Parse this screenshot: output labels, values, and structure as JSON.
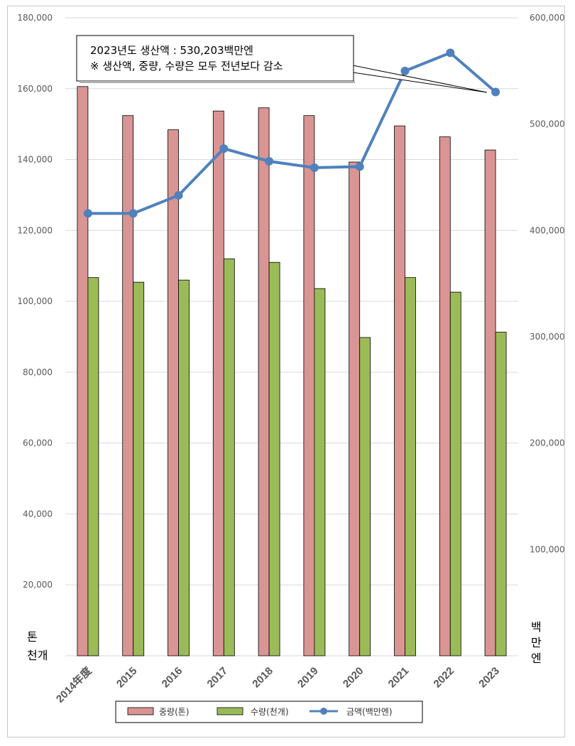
{
  "chart_data": {
    "type": "bar",
    "categories": [
      "2014年度",
      "2015",
      "2016",
      "2017",
      "2018",
      "2019",
      "2020",
      "2021",
      "2022",
      "2023"
    ],
    "series": [
      {
        "name": "중량(톤)",
        "type": "bar",
        "axis": "left",
        "color": "#d99594",
        "values": [
          160600,
          152400,
          148400,
          153700,
          154600,
          152400,
          139300,
          149500,
          146400,
          142700
        ]
      },
      {
        "name": "수량(천개)",
        "type": "bar",
        "axis": "left",
        "color": "#9bbb59",
        "values": [
          106700,
          105400,
          106000,
          112000,
          111000,
          103600,
          89800,
          106700,
          102600,
          91300
        ]
      },
      {
        "name": "금액(백만엔)",
        "type": "line",
        "axis": "right",
        "color": "#4f81bd",
        "values": [
          416000,
          416000,
          433000,
          477000,
          465000,
          459000,
          460000,
          550000,
          567000,
          530203
        ]
      }
    ],
    "ylim_left": [
      0,
      180000
    ],
    "ylim_right": [
      0,
      600000
    ],
    "y_ticks_left": [
      "20,000",
      "40,000",
      "60,000",
      "80,000",
      "100,000",
      "120,000",
      "140,000",
      "160,000",
      "180,000"
    ],
    "y_ticks_right": [
      "100,000",
      "200,000",
      "300,000",
      "400,000",
      "500,000",
      "600,000"
    ],
    "left_axis_unit": [
      "톤",
      "천개"
    ],
    "right_axis_unit": [
      "백",
      "만",
      "엔"
    ],
    "grid": true,
    "legend_position": "bottom",
    "annotation": {
      "line1": "2023년도 생산액 : 530,203백만엔",
      "line2": "※ 생산액, 중량, 수량은 모두 전년보다 감소"
    }
  }
}
